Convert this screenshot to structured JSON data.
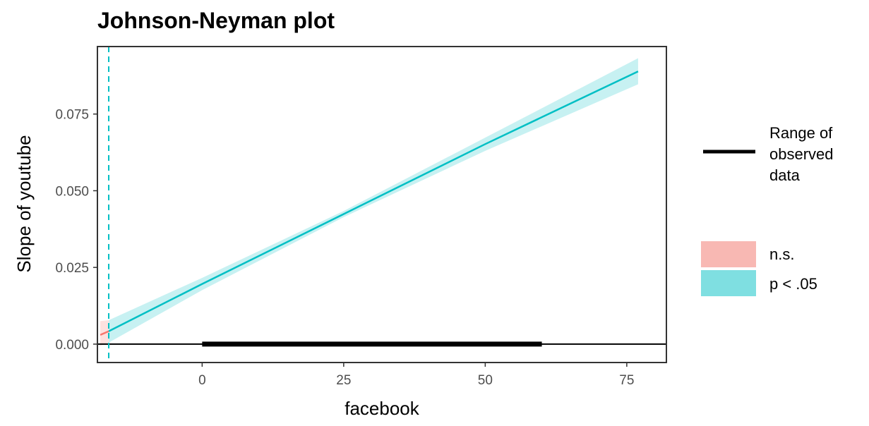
{
  "chart_data": {
    "type": "line",
    "title": "Johnson-Neyman plot",
    "xlabel": "facebook",
    "ylabel": "Slope of youtube",
    "xlim": [
      -18.5,
      82
    ],
    "ylim": [
      -0.006,
      0.097
    ],
    "x_ticks": [
      0,
      25,
      50,
      75
    ],
    "y_ticks": [
      0.0,
      0.025,
      0.05,
      0.075
    ],
    "x_tick_labels": [
      "0",
      "25",
      "50",
      "75"
    ],
    "y_tick_labels": [
      "0.000",
      "0.025",
      "0.050",
      "0.075"
    ],
    "grid": false,
    "reference_hline_y": 0,
    "johnson_neyman_x": -16.5,
    "observed_range": [
      0,
      60
    ],
    "series": [
      {
        "name": "n.s.",
        "color": "#f8766d",
        "fill": "#f8766d",
        "x": [
          -18,
          -16.5
        ],
        "y": [
          0.003,
          0.0042
        ],
        "ci_lower": [
          -0.0005,
          0.0005
        ],
        "ci_upper": [
          0.0075,
          0.0078
        ]
      },
      {
        "name": "p < .05",
        "color": "#00bfc4",
        "fill": "#00bfc4",
        "x": [
          -16.5,
          0,
          25,
          50,
          77
        ],
        "y": [
          0.0042,
          0.0196,
          0.0424,
          0.0652,
          0.0889
        ],
        "ci_lower": [
          0.0005,
          0.0176,
          0.0414,
          0.063,
          0.0847
        ],
        "ci_upper": [
          0.0078,
          0.0216,
          0.0434,
          0.0673,
          0.0932
        ]
      }
    ],
    "legend": {
      "placement": "right",
      "range_label_lines": [
        "Range of",
        "observed",
        "data"
      ],
      "significance_entries": [
        {
          "label": "n.s.",
          "color": "#f8b8b3"
        },
        {
          "label": "p < .05",
          "color": "#7fdfe1"
        }
      ]
    }
  }
}
